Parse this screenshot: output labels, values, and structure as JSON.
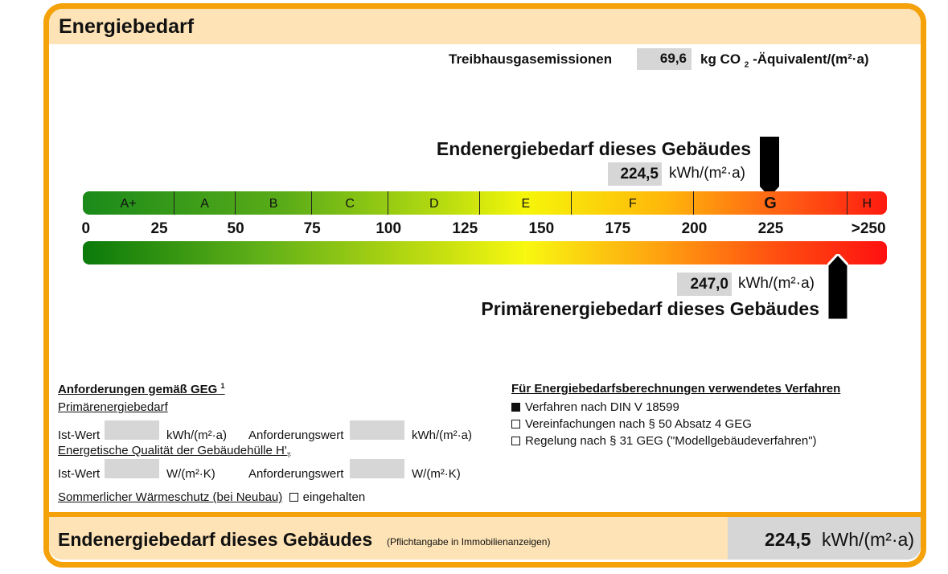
{
  "header": {
    "title": "Energiebedarf"
  },
  "emissions": {
    "label": "Treibhausgasemissionen",
    "value": "69,6",
    "unit_pre": "kg CO",
    "unit_sub": "2",
    "unit_post": "-Äquivalent/(m²·a)"
  },
  "end_energy": {
    "title": "Endenergiebedarf dieses Gebäudes",
    "value": "224,5",
    "unit": "kWh/(m²·a)",
    "numeric": 224.5
  },
  "primary_energy": {
    "title": "Primärenergiebedarf dieses Gebäudes",
    "value": "247,0",
    "unit": "kWh/(m²·a)",
    "numeric": 247.0
  },
  "scale": {
    "classes": [
      {
        "label": "A+",
        "from": 0,
        "to": 30
      },
      {
        "label": "A",
        "from": 30,
        "to": 50
      },
      {
        "label": "B",
        "from": 50,
        "to": 75
      },
      {
        "label": "C",
        "from": 75,
        "to": 100
      },
      {
        "label": "D",
        "from": 100,
        "to": 130
      },
      {
        "label": "E",
        "from": 130,
        "to": 160
      },
      {
        "label": "F",
        "from": 160,
        "to": 200
      },
      {
        "label": "G",
        "from": 200,
        "to": 250
      },
      {
        "label": "H",
        "from": 250,
        "to": 263
      }
    ],
    "ticks": [
      {
        "label": "0",
        "v": 1
      },
      {
        "label": "25",
        "v": 25
      },
      {
        "label": "50",
        "v": 50
      },
      {
        "label": "75",
        "v": 75
      },
      {
        "label": "100",
        "v": 100
      },
      {
        "label": "125",
        "v": 125
      },
      {
        "label": "150",
        "v": 150
      },
      {
        "label": "175",
        "v": 175
      },
      {
        "label": "200",
        "v": 200
      },
      {
        "label": "225",
        "v": 225
      },
      {
        "label": ">250",
        "v": 257
      }
    ],
    "max": 263
  },
  "requirements": {
    "title": "Anforderungen gemäß GEG",
    "footnote": "1",
    "primary_label": "Primärenergiebedarf",
    "ist": "Ist-Wert",
    "anf": "Anforderungswert",
    "unit_kwh": "kWh/(m²·a)",
    "envelope_label": "Energetische Qualität der Gebäudehülle H'",
    "envelope_sub": "T",
    "unit_w": "W/(m²·K)",
    "summer_label": "Sommerlicher Wärmeschutz (bei Neubau)",
    "summer_check": "eingehalten"
  },
  "method": {
    "title": "Für Energiebedarfsberechnungen verwendetes Verfahren",
    "options": [
      {
        "label": "Verfahren nach DIN V 18599",
        "checked": true
      },
      {
        "label": "Vereinfachungen nach § 50 Absatz 4 GEG",
        "checked": false
      },
      {
        "label": "Regelung nach § 31 GEG (\"Modellgebäudeverfahren\")",
        "checked": false
      }
    ]
  },
  "footer": {
    "title": "Endenergiebedarf dieses Gebäudes",
    "note": "(Pflichtangabe in Immobilienanzeigen)",
    "value": "224,5",
    "unit": "kWh/(m²·a)"
  },
  "colors": {
    "orange": "#f5a10a",
    "peach": "#fde3b5",
    "gray": "#d6d6d6"
  }
}
